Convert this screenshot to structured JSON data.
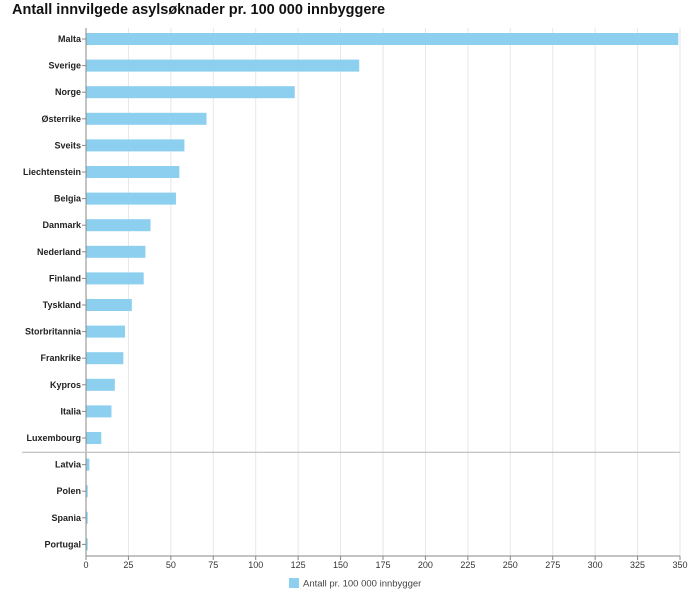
{
  "chart_data": {
    "type": "bar",
    "orientation": "horizontal",
    "title": "Antall innvilgede asylsøknader pr. 100 000 innbyggere",
    "categories": [
      "Malta",
      "Sverige",
      "Norge",
      "Østerrike",
      "Sveits",
      "Liechtenstein",
      "Belgia",
      "Danmark",
      "Nederland",
      "Finland",
      "Tyskland",
      "Storbritannia",
      "Frankrike",
      "Kypros",
      "Italia",
      "Luxembourg",
      "Latvia",
      "Polen",
      "Spania",
      "Portugal"
    ],
    "series": [
      {
        "name": "Antall pr. 100 000 innbygger",
        "color": "#8ccfee",
        "values": [
          349,
          161,
          123,
          71,
          58,
          55,
          53,
          38,
          35,
          34,
          27,
          23,
          22,
          17,
          15,
          9,
          2,
          1,
          1,
          1
        ]
      }
    ],
    "xlim": [
      0,
      350
    ],
    "xticks": [
      0,
      25,
      50,
      75,
      100,
      125,
      150,
      175,
      200,
      225,
      250,
      275,
      300,
      325,
      350
    ],
    "grid": "vertical",
    "legend_position": "bottom-center"
  }
}
